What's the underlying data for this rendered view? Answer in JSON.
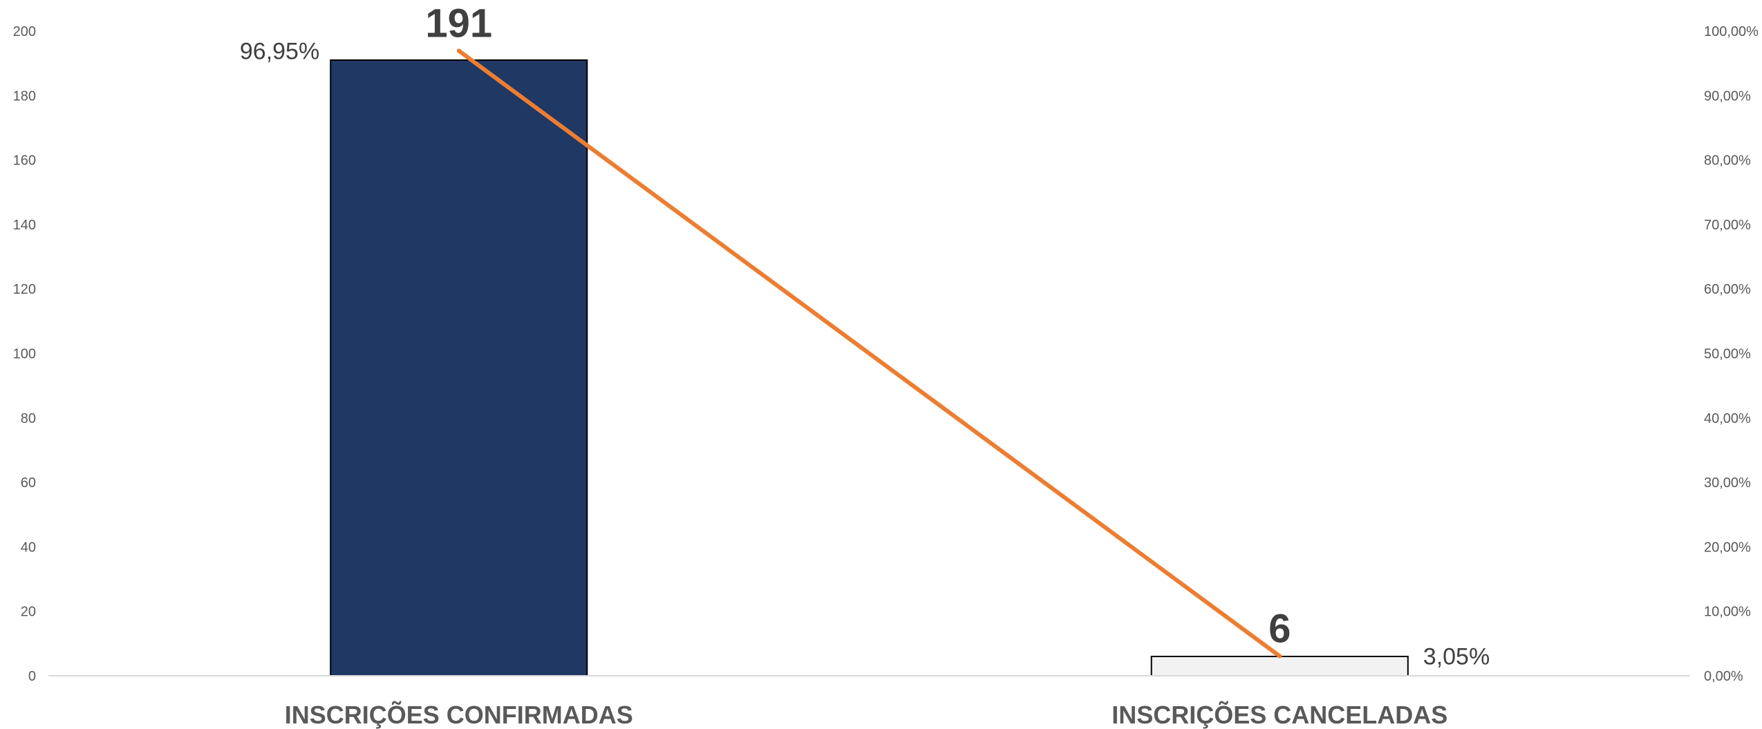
{
  "chart_data": {
    "type": "bar",
    "categories": [
      "INSCRIÇÕES CONFIRMADAS",
      "INSCRIÇÕES CANCELADAS"
    ],
    "series": [
      {
        "kind": "bar",
        "axis": "left",
        "values": [
          191,
          6
        ],
        "value_labels": [
          "191",
          "6"
        ],
        "colors": [
          "#203864",
          "#f2f2f2"
        ]
      },
      {
        "kind": "line",
        "axis": "right",
        "values": [
          96.95,
          3.05
        ],
        "value_labels": [
          "96,95%",
          "3,05%"
        ],
        "color": "#ed7d31"
      }
    ],
    "y_left": {
      "min": 0,
      "max": 200,
      "ticks": [
        "0",
        "20",
        "40",
        "60",
        "80",
        "100",
        "120",
        "140",
        "160",
        "180",
        "200"
      ]
    },
    "y_right": {
      "min": 0,
      "max": 100,
      "ticks": [
        "0,00%",
        "10,00%",
        "20,00%",
        "30,00%",
        "40,00%",
        "50,00%",
        "60,00%",
        "70,00%",
        "80,00%",
        "90,00%",
        "100,00%"
      ]
    },
    "grid": false,
    "legend": "none"
  }
}
